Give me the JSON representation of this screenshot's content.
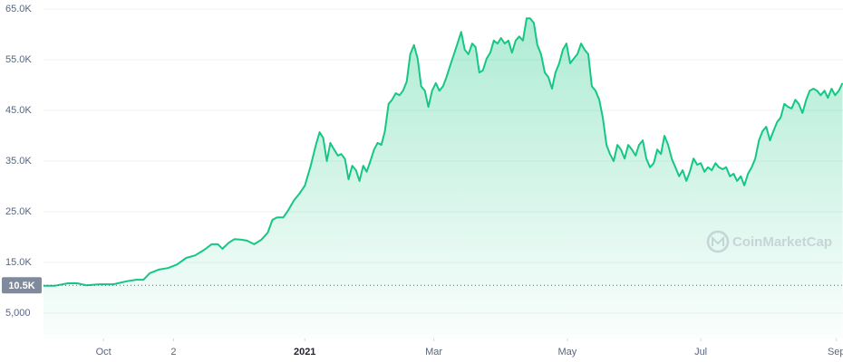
{
  "chart_data": {
    "type": "area-line",
    "color": "#16c784",
    "x": [
      -27.4,
      -22.4,
      -16.2,
      -12.0,
      -7.9,
      -1.7,
      4.6,
      10.8,
      14.9,
      18.3,
      21.2,
      25.3,
      29.5,
      33.6,
      37.8,
      41.9,
      46.1,
      49.4,
      52.3,
      54.4,
      57.3,
      59.8,
      62.7,
      65.6,
      68.9,
      72.2,
      75.1,
      77.2,
      79.3,
      82.2,
      84.6,
      87.1,
      89.6,
      92.1,
      94.6,
      97.1,
      98.8,
      100.4,
      102.1,
      103.7,
      105.4,
      107.1,
      108.7,
      110.4,
      112.0,
      113.7,
      115.4,
      117.0,
      118.7,
      120.3,
      122.0,
      123.7,
      125.3,
      127.0,
      128.6,
      130.3,
      131.9,
      133.6,
      135.3,
      136.9,
      138.6,
      140.2,
      141.9,
      143.6,
      145.2,
      146.9,
      148.5,
      150.2,
      151.9,
      153.5,
      155.2,
      156.8,
      158.5,
      160.2,
      161.8,
      163.5,
      165.1,
      166.8,
      168.5,
      170.1,
      171.8,
      173.4,
      175.1,
      176.8,
      178.4,
      180.1,
      181.7,
      183.4,
      185.1,
      186.7,
      188.4,
      190.0,
      191.7,
      193.4,
      195.0,
      196.7,
      198.3,
      200.0,
      201.7,
      203.3,
      205.0,
      206.6,
      208.3,
      210.0,
      211.6,
      213.3,
      214.9,
      216.6,
      218.3,
      219.9,
      221.6,
      223.2,
      224.9,
      226.6,
      228.2,
      229.9,
      231.5,
      233.2,
      234.9,
      236.5,
      238.2,
      239.8,
      241.5,
      243.2,
      244.8,
      246.5,
      248.1,
      249.8,
      251.5,
      253.1,
      254.8,
      256.4,
      258.1,
      259.8,
      261.4,
      263.1,
      264.7,
      266.4,
      268.0,
      269.7,
      271.4,
      273.0,
      274.7,
      276.3,
      278.0,
      279.7,
      281.3,
      283.0,
      284.6,
      286.3,
      288.0,
      289.6,
      291.3,
      292.9,
      294.6,
      296.3,
      297.9,
      299.6,
      301.2,
      302.9,
      304.6,
      306.2,
      307.9,
      309.5,
      311.2,
      312.9,
      314.5,
      316.2,
      317.8,
      319.5,
      321.2,
      322.8,
      324.5,
      326.1,
      327.8,
      329.5,
      331.1,
      332.8,
      334.4,
      336.1,
      337.8
    ],
    "values": [
      10400,
      10400,
      10900,
      10900,
      10500,
      10700,
      10700,
      11300,
      11600,
      11600,
      12900,
      13600,
      13900,
      14600,
      15900,
      16400,
      17500,
      18600,
      18600,
      17700,
      18900,
      19600,
      19500,
      19300,
      18600,
      19500,
      20900,
      23400,
      23900,
      23900,
      25400,
      27300,
      28600,
      30200,
      33900,
      38200,
      40700,
      39600,
      35000,
      38600,
      37300,
      36100,
      36400,
      35400,
      31400,
      34100,
      33200,
      31100,
      34100,
      32900,
      35000,
      37300,
      38600,
      38200,
      40900,
      46300,
      47100,
      48400,
      48000,
      48900,
      50700,
      56100,
      57900,
      55200,
      49800,
      48900,
      45700,
      48900,
      50400,
      48900,
      49800,
      51600,
      53900,
      56100,
      58200,
      60500,
      57000,
      56100,
      58200,
      57500,
      52500,
      52900,
      55200,
      56400,
      58800,
      58200,
      59300,
      58200,
      58800,
      56400,
      58800,
      59600,
      58800,
      63200,
      63200,
      62300,
      57900,
      56100,
      52500,
      51600,
      49300,
      52500,
      54300,
      57000,
      58200,
      54300,
      55200,
      56100,
      58200,
      57000,
      56100,
      49800,
      48900,
      47100,
      43600,
      38200,
      36400,
      35000,
      38200,
      37300,
      35500,
      38200,
      37300,
      36100,
      38200,
      39100,
      35500,
      33800,
      34600,
      37300,
      36400,
      40000,
      38200,
      35400,
      33800,
      32000,
      33200,
      31100,
      32900,
      35500,
      34300,
      34600,
      32900,
      33800,
      33200,
      34600,
      33800,
      33400,
      33800,
      32000,
      32500,
      31100,
      32000,
      30200,
      32500,
      33800,
      35500,
      39100,
      40900,
      41800,
      39100,
      40900,
      42700,
      43600,
      46300,
      45700,
      45400,
      47100,
      46300,
      44500,
      47100,
      48900,
      49300,
      48900,
      48000,
      48900,
      47500,
      49300,
      48000,
      48900,
      50400
    ],
    "xlim": [
      -27.4,
      338
    ],
    "xticks": [
      {
        "value": 0,
        "label": "Oct"
      },
      {
        "value": 32,
        "label": "2"
      },
      {
        "value": 92,
        "label": "2021"
      },
      {
        "value": 151,
        "label": "Mar"
      },
      {
        "value": 212,
        "label": "May"
      },
      {
        "value": 273,
        "label": "Jul"
      },
      {
        "value": 335,
        "label": "Sep"
      }
    ],
    "ylim": [
      0,
      66800
    ],
    "yticks": [
      {
        "value": 5000,
        "label": "5,000"
      },
      {
        "value": 15000,
        "label": "15.0K"
      },
      {
        "value": 25000,
        "label": "25.0K"
      },
      {
        "value": 35000,
        "label": "35.0K"
      },
      {
        "value": 45000,
        "label": "45.0K"
      },
      {
        "value": 55000,
        "label": "55.0K"
      },
      {
        "value": 65000,
        "label": "65.0K"
      }
    ],
    "grid": true,
    "reference": {
      "value": 10500,
      "label": "10.5K"
    },
    "watermark": "CoinMarketCap"
  }
}
